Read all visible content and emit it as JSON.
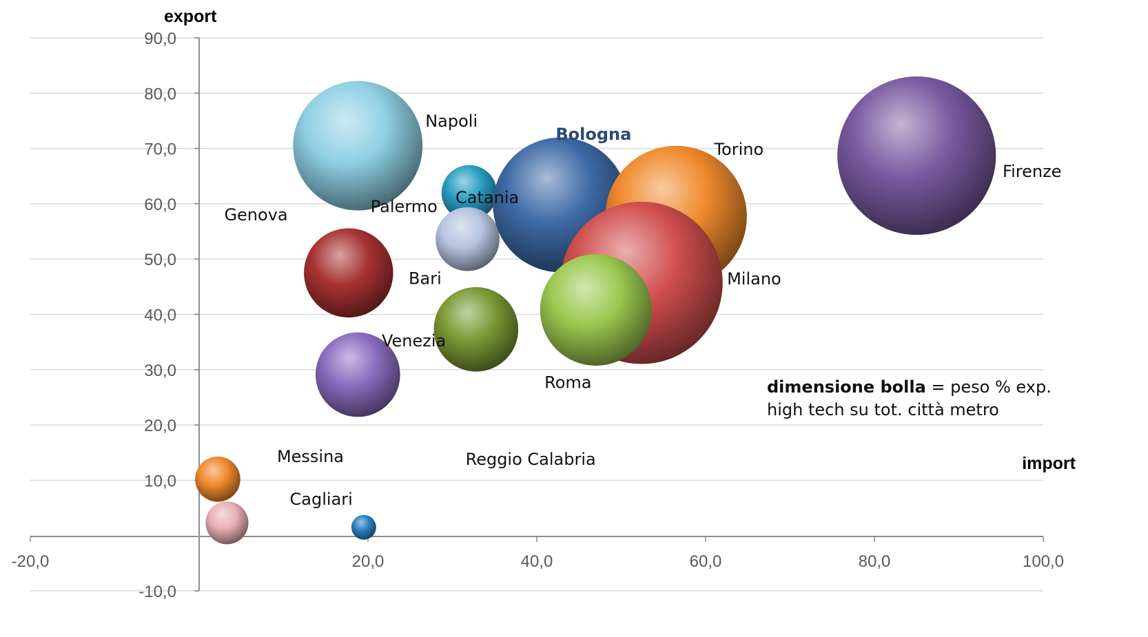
{
  "chart_data": {
    "type": "bubble",
    "xlabel": "import",
    "ylabel": "export",
    "xlim": [
      -20,
      100
    ],
    "ylim": [
      -10,
      90
    ],
    "x_ticks": [
      "-20,0",
      "20,0",
      "40,0",
      "60,0",
      "80,0",
      "100,0"
    ],
    "y_ticks": [
      "-10,0",
      "10,0",
      "20,0",
      "30,0",
      "40,0",
      "50,0",
      "60,0",
      "70,0",
      "80,0",
      "90,0"
    ],
    "grid": true,
    "note": {
      "bold": "dimensione bolla",
      "line1_rest": " = peso % exp.",
      "line2": "high tech su tot. città metro"
    },
    "points": [
      {
        "label": "Napoli",
        "x": 18.8,
        "y": 70.5,
        "size": 8.2,
        "color": "#8fd0e4"
      },
      {
        "label": "Palermo",
        "x": 32.0,
        "y": 62.0,
        "size": 1.5,
        "color": "#2a9fc2"
      },
      {
        "label": "Catania",
        "x": 31.8,
        "y": 53.6,
        "size": 2.0,
        "color": "#b6c4e0"
      },
      {
        "label": "Genova",
        "x": 17.7,
        "y": 47.5,
        "size": 3.9,
        "color": "#a83232"
      },
      {
        "label": "Bologna",
        "x": 42.8,
        "y": 59.8,
        "size": 8.9,
        "color": "#3d6aa6",
        "highlight": true
      },
      {
        "label": "Torino",
        "x": 56.5,
        "y": 57.7,
        "size": 9.8,
        "color": "#ef8a2c"
      },
      {
        "label": "Firenze",
        "x": 85.0,
        "y": 68.7,
        "size": 12.3,
        "color": "#7a5aa0"
      },
      {
        "label": "Milano",
        "x": 52.4,
        "y": 45.7,
        "size": 12.9,
        "color": "#d14e4e"
      },
      {
        "label": "Roma",
        "x": 47.0,
        "y": 40.8,
        "size": 6.1,
        "color": "#9cc850"
      },
      {
        "label": "Bari",
        "x": 32.8,
        "y": 37.3,
        "size": 3.5,
        "color": "#7a9a34"
      },
      {
        "label": "Venezia",
        "x": 18.8,
        "y": 29.1,
        "size": 3.5,
        "color": "#8a6cc0"
      },
      {
        "label": "Messina",
        "x": 2.2,
        "y": 10.2,
        "size": 1.0,
        "color": "#ef8a2c"
      },
      {
        "label": "Cagliari",
        "x": 3.3,
        "y": 2.3,
        "size": 0.9,
        "color": "#e8b0b4"
      },
      {
        "label": "Reggio Calabria",
        "x": 19.5,
        "y": 1.5,
        "size": 0.3,
        "color": "#2a80c0"
      }
    ]
  }
}
